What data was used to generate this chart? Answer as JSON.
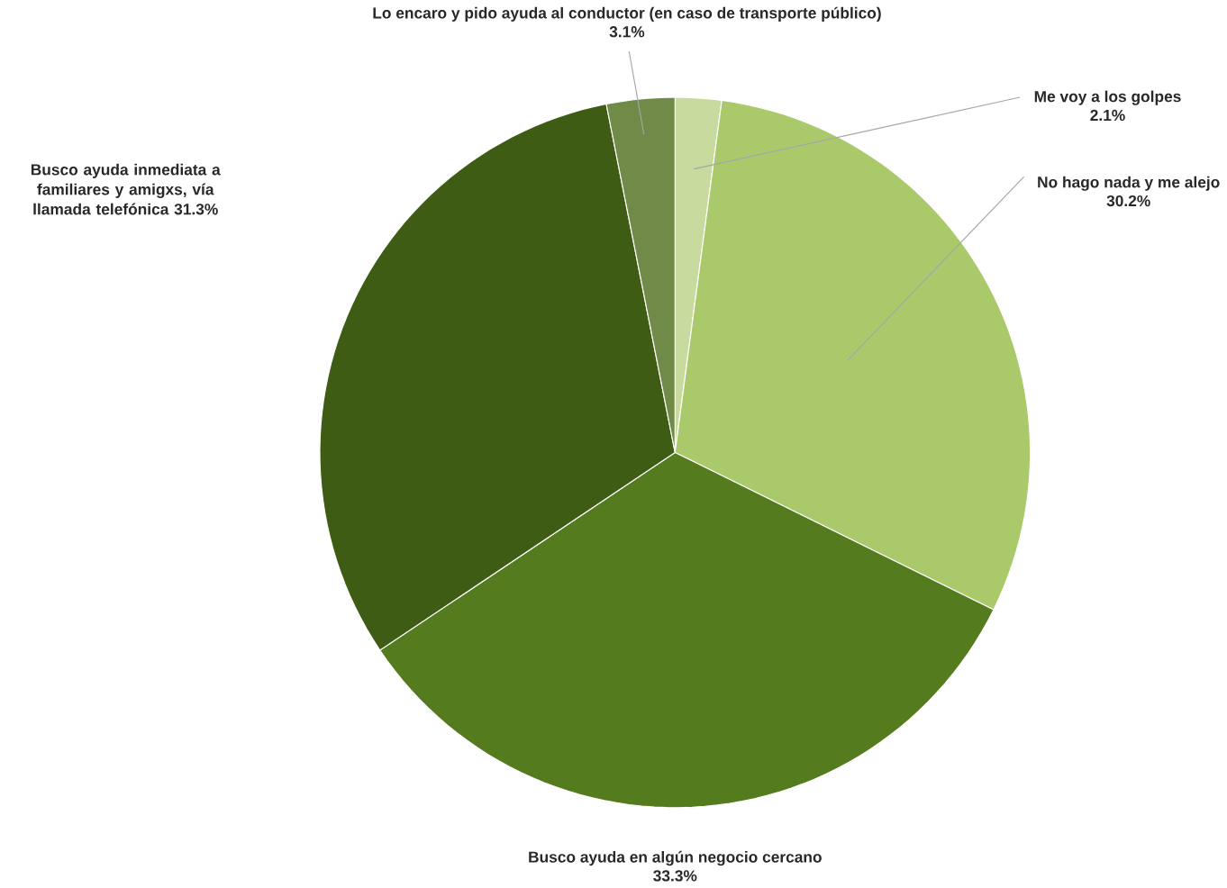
{
  "chart_data": {
    "type": "pie",
    "categories": [
      "Me voy a los golpes",
      "No hago nada y me alejo",
      "Busco ayuda en algún negocio cercano",
      "Busco ayuda inmediata a familiares y amigxs, vía llamada telefónica",
      "Lo encaro y pido ayuda al conductor (en caso de transporte público)"
    ],
    "values": [
      2.1,
      30.2,
      33.3,
      31.3,
      3.1
    ],
    "value_labels": [
      "2.1%",
      "30.2%",
      "33.3%",
      "31.3%",
      "3.1%"
    ],
    "colors": [
      "#c8da9e",
      "#a9c96a",
      "#557b1f",
      "#3f5c14",
      "#6f8b47"
    ]
  }
}
